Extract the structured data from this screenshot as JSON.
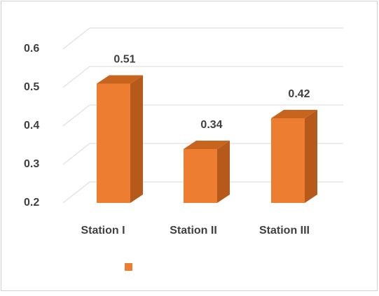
{
  "chart_data": {
    "type": "bar3d",
    "categories": [
      "Station I",
      "Station II",
      "Station III"
    ],
    "values": [
      0.51,
      0.34,
      0.42
    ],
    "color": "#ed7d31",
    "ylim": [
      0.2,
      0.6
    ],
    "yticks": [
      0.2,
      0.3,
      0.4,
      0.5,
      0.6
    ],
    "grid": true,
    "legend": "bottom"
  }
}
